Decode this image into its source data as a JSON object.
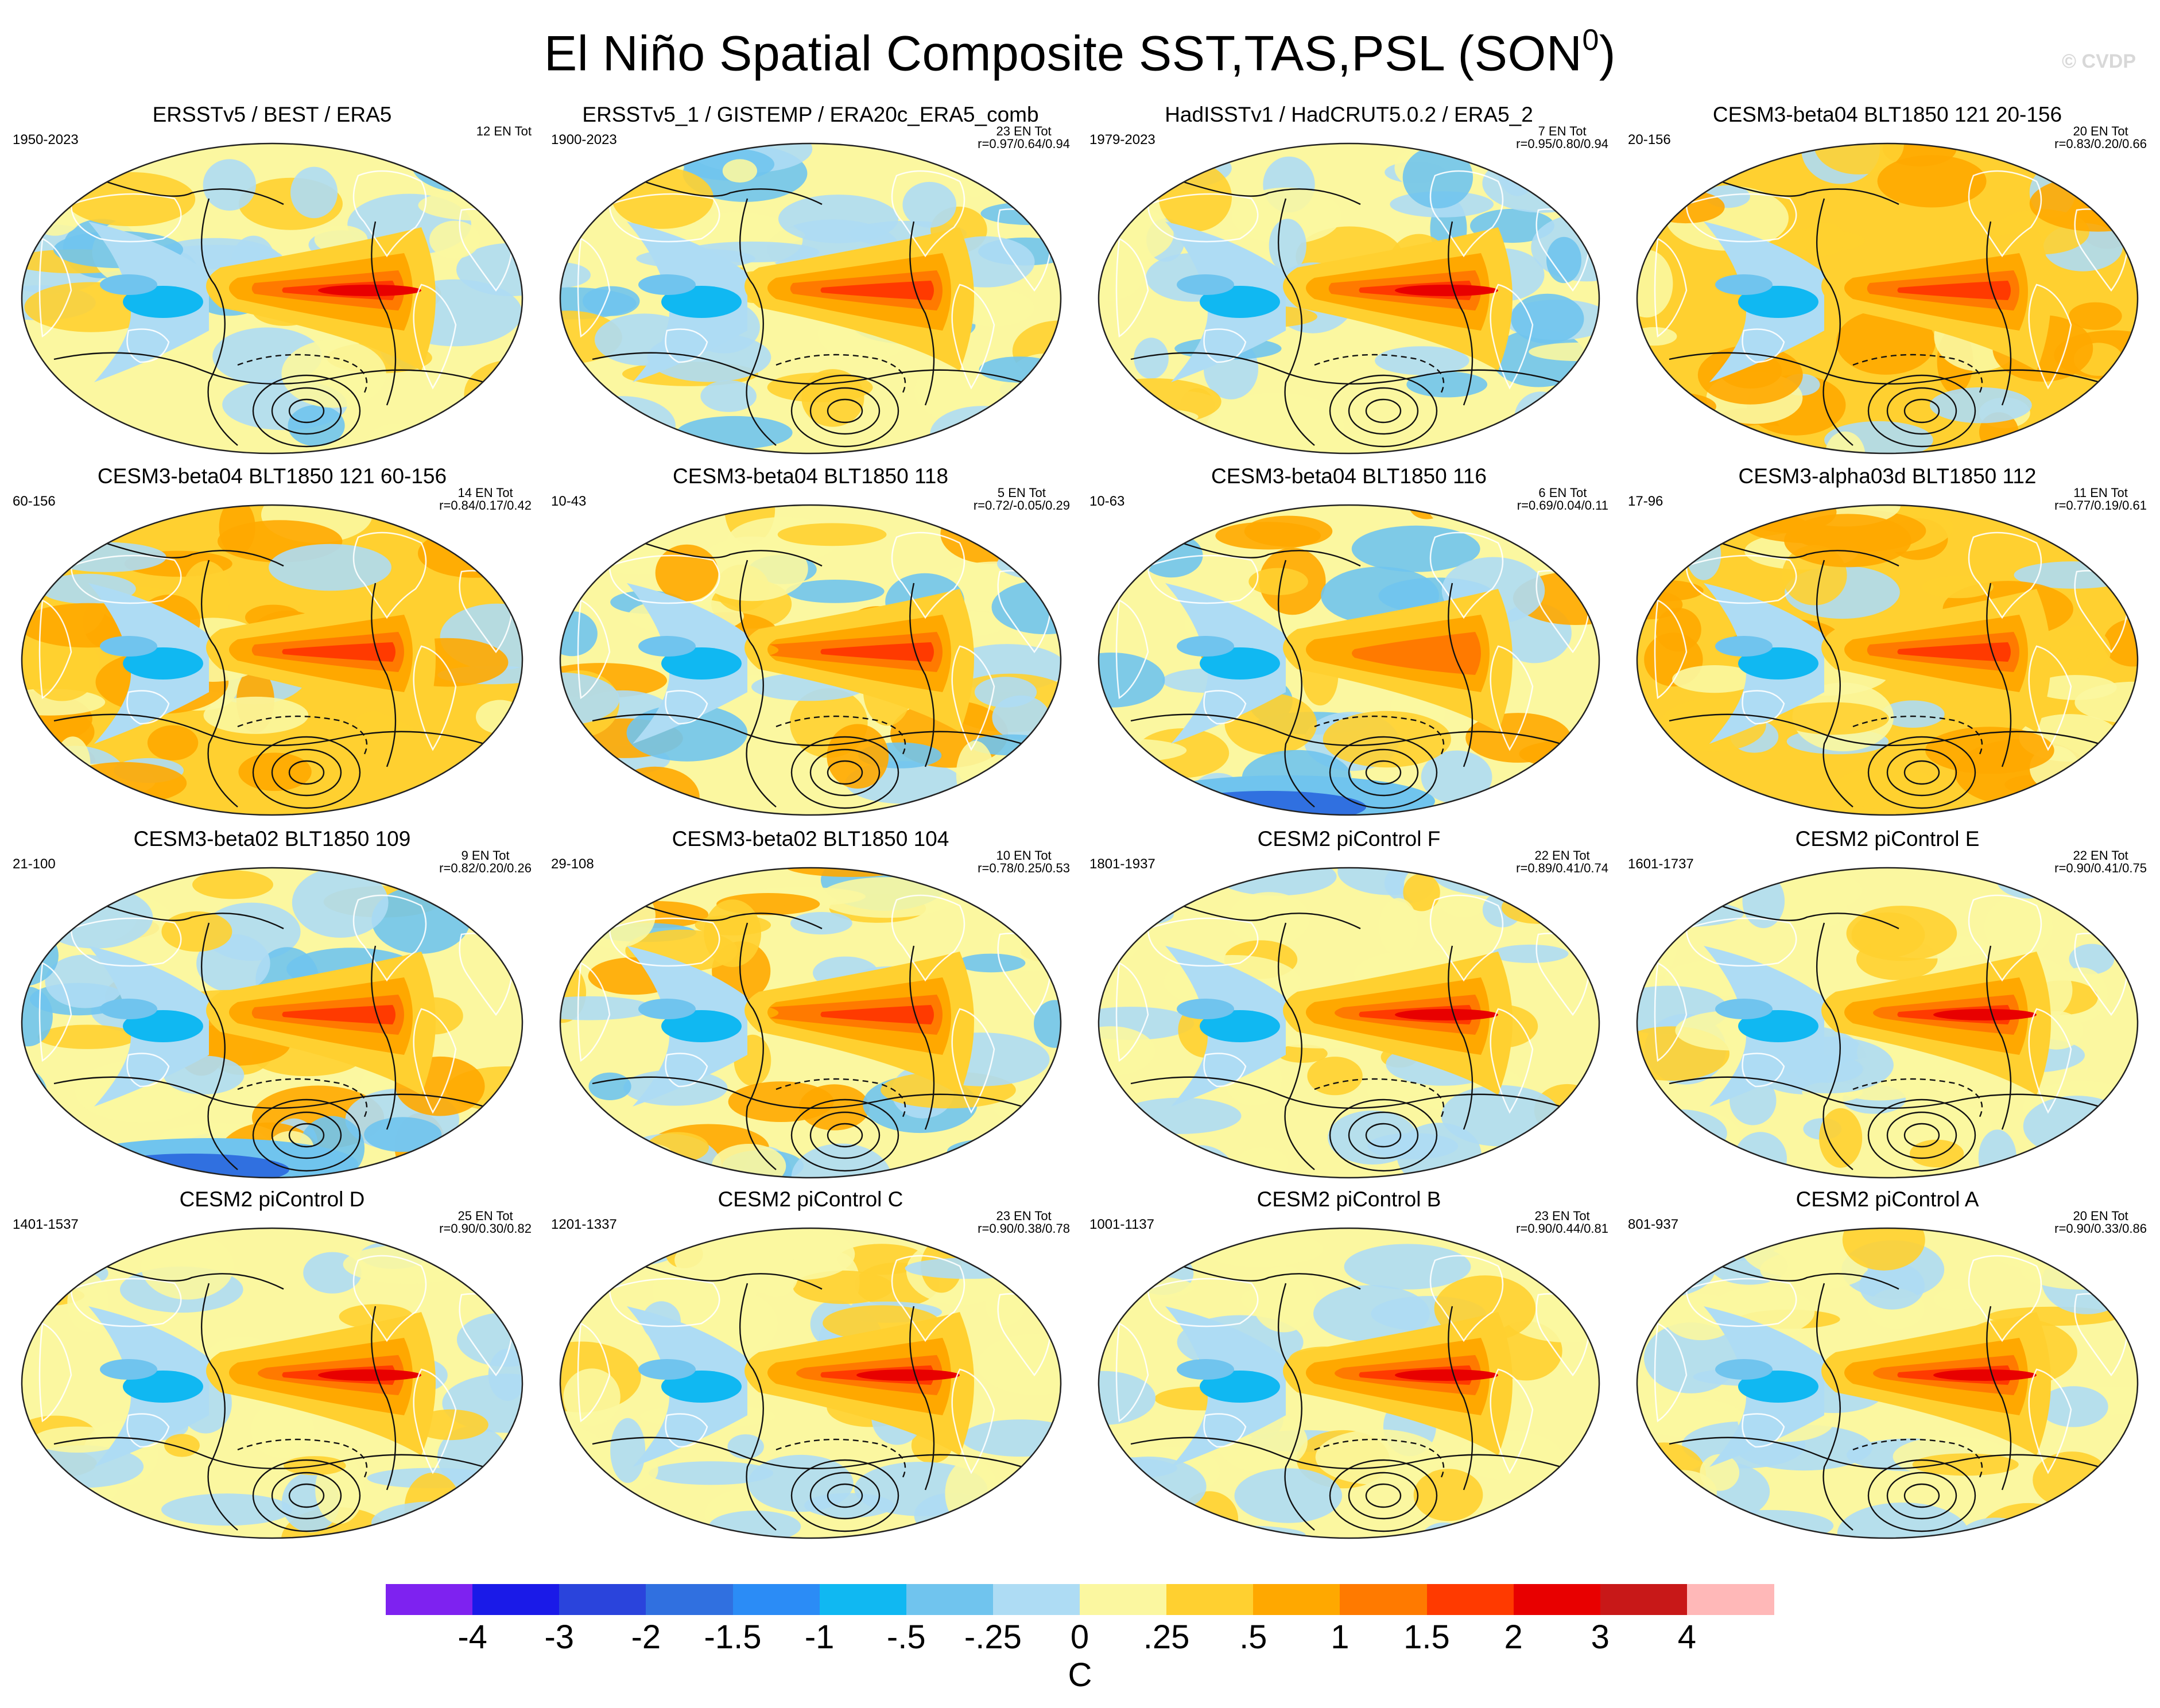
{
  "title": {
    "main": "El Niño Spatial Composite SST,TAS,PSL (SON",
    "sup": "0",
    "end": ")"
  },
  "watermark": "© CVDP",
  "panels": [
    {
      "title": "ERSSTv5 / BEST / ERA5",
      "years": "1950-2023",
      "events": "12 EN Tot",
      "corr": "",
      "variant": "obs1"
    },
    {
      "title": "ERSSTv5_1 / GISTEMP / ERA20c_ERA5_comb",
      "years": "1900-2023",
      "events": "23 EN Tot",
      "corr": "r=0.97/0.64/0.94",
      "variant": "obs2"
    },
    {
      "title": "HadISSTv1 / HadCRUT5.0.2 / ERA5_2",
      "years": "1979-2023",
      "events": "7 EN Tot",
      "corr": "r=0.95/0.80/0.94",
      "variant": "obs3"
    },
    {
      "title": "CESM3-beta04 BLT1850 121 20-156",
      "years": "20-156",
      "events": "20 EN Tot",
      "corr": "r=0.83/0.20/0.66",
      "variant": "warm"
    },
    {
      "title": "CESM3-beta04 BLT1850 121 60-156",
      "years": "60-156",
      "events": "14 EN Tot",
      "corr": "r=0.84/0.17/0.42",
      "variant": "warm"
    },
    {
      "title": "CESM3-beta04 BLT1850 118",
      "years": "10-43",
      "events": "5 EN Tot",
      "corr": "r=0.72/-0.05/0.29",
      "variant": "mix"
    },
    {
      "title": "CESM3-beta04 BLT1850 116",
      "years": "10-63",
      "events": "6 EN Tot",
      "corr": "r=0.69/0.04/0.11",
      "variant": "mixcold"
    },
    {
      "title": "CESM3-alpha03d BLT1850 112",
      "years": "17-96",
      "events": "11 EN Tot",
      "corr": "r=0.77/0.19/0.61",
      "variant": "warm"
    },
    {
      "title": "CESM3-beta02 BLT1850 109",
      "years": "21-100",
      "events": "9 EN Tot",
      "corr": "r=0.82/0.20/0.26",
      "variant": "cold"
    },
    {
      "title": "CESM3-beta02 BLT1850 104",
      "years": "29-108",
      "events": "10 EN Tot",
      "corr": "r=0.78/0.25/0.53",
      "variant": "mix"
    },
    {
      "title": "CESM2 piControl F",
      "years": "1801-1937",
      "events": "22 EN Tot",
      "corr": "r=0.89/0.41/0.74",
      "variant": "cesm2"
    },
    {
      "title": "CESM2 piControl E",
      "years": "1601-1737",
      "events": "22 EN Tot",
      "corr": "r=0.90/0.41/0.75",
      "variant": "cesm2"
    },
    {
      "title": "CESM2 piControl D",
      "years": "1401-1537",
      "events": "25 EN Tot",
      "corr": "r=0.90/0.30/0.82",
      "variant": "cesm2"
    },
    {
      "title": "CESM2 piControl C",
      "years": "1201-1337",
      "events": "23 EN Tot",
      "corr": "r=0.90/0.38/0.78",
      "variant": "cesm2"
    },
    {
      "title": "CESM2 piControl B",
      "years": "1001-1137",
      "events": "23 EN Tot",
      "corr": "r=0.90/0.44/0.81",
      "variant": "cesm2"
    },
    {
      "title": "CESM2 piControl A",
      "years": "801-937",
      "events": "20 EN Tot",
      "corr": "r=0.90/0.33/0.86",
      "variant": "cesm2"
    }
  ],
  "colorbar": {
    "colors": [
      "#7e22f0",
      "#1a1ae8",
      "#2a44dc",
      "#3070e0",
      "#2b8cf6",
      "#10b8f2",
      "#70c4ee",
      "#aedcf4",
      "#fbf7a0",
      "#ffd030",
      "#ffa800",
      "#ff7a00",
      "#ff3a00",
      "#e80000",
      "#c81818",
      "#ffb8b8"
    ],
    "labels": [
      "-4",
      "-3",
      "-2",
      "-1.5",
      "-1",
      "-.5",
      "-.25",
      "0",
      ".25",
      ".5",
      "1",
      "1.5",
      "2",
      "3",
      "4"
    ],
    "units": "C"
  },
  "palette": {
    "lightblue": "#aedcf4",
    "medblue": "#70c4ee",
    "blue": "#10b8f2",
    "deepblue": "#3070e0",
    "yellow": "#fbf7a0",
    "gold": "#ffd030",
    "orange": "#ffa800",
    "darkorange": "#ff7a00",
    "red": "#ff3a00",
    "crimson": "#e80000"
  }
}
